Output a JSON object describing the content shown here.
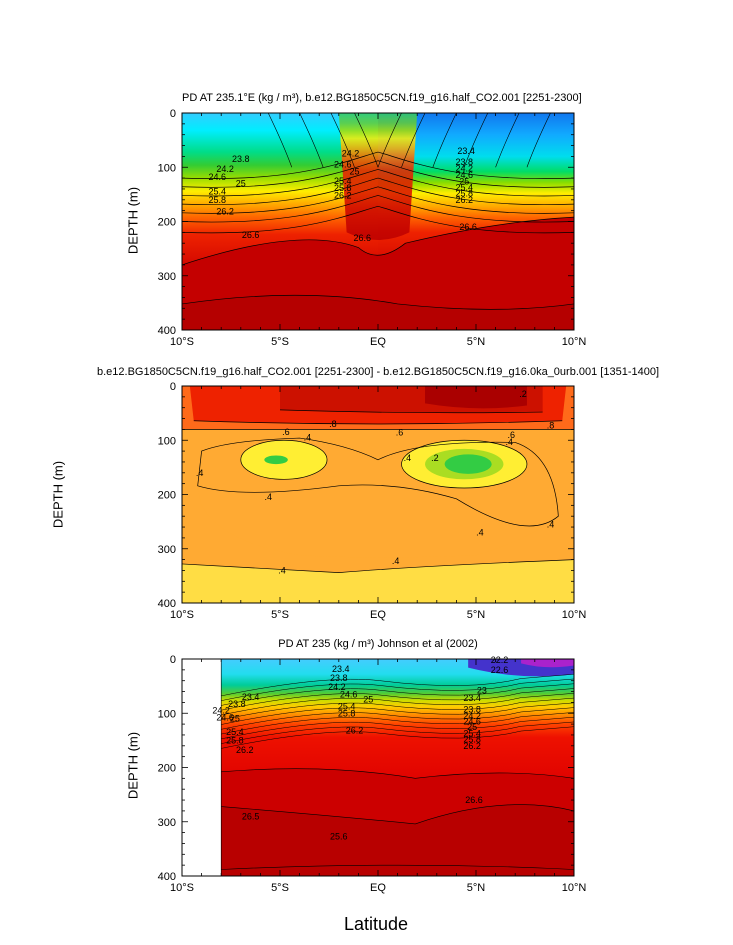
{
  "chart_data": [
    {
      "type": "heatmap",
      "title": "PD AT 235.1°E (kg / m³), b.e12.BG1850C5CN.f19_g16.half_CO2.001 [2251-2300]",
      "xlabel": "",
      "ylabel": "DEPTH (m)",
      "x_ticks": [
        "10°S",
        "5°S",
        "EQ",
        "5°N",
        "10°N"
      ],
      "y_ticks": [
        "0",
        "100",
        "200",
        "300",
        "400"
      ],
      "xlim": [
        -10,
        10
      ],
      "ylim": [
        400,
        0
      ],
      "contour_labels": [
        {
          "text": "23.8",
          "lat": -7.0,
          "depth": 85
        },
        {
          "text": "24.2",
          "lat": -7.8,
          "depth": 103
        },
        {
          "text": "24.6",
          "lat": -8.2,
          "depth": 118
        },
        {
          "text": "25",
          "lat": -7.0,
          "depth": 130
        },
        {
          "text": "25.4",
          "lat": -8.2,
          "depth": 145
        },
        {
          "text": "25.8",
          "lat": -8.2,
          "depth": 160
        },
        {
          "text": "26.2",
          "lat": -7.8,
          "depth": 182
        },
        {
          "text": "26.6",
          "lat": -6.5,
          "depth": 225
        },
        {
          "text": "24.2",
          "lat": -1.4,
          "depth": 75
        },
        {
          "text": "24.6",
          "lat": -1.8,
          "depth": 95
        },
        {
          "text": "25",
          "lat": -1.2,
          "depth": 108
        },
        {
          "text": "25.4",
          "lat": -1.8,
          "depth": 125
        },
        {
          "text": "25.8",
          "lat": -1.8,
          "depth": 138
        },
        {
          "text": "26.2",
          "lat": -1.8,
          "depth": 152
        },
        {
          "text": "26.6",
          "lat": -0.8,
          "depth": 230
        },
        {
          "text": "23.4",
          "lat": 4.5,
          "depth": 70
        },
        {
          "text": "23.8",
          "lat": 4.4,
          "depth": 90
        },
        {
          "text": "24.2",
          "lat": 4.4,
          "depth": 102
        },
        {
          "text": "24.6",
          "lat": 4.4,
          "depth": 114
        },
        {
          "text": "25",
          "lat": 4.4,
          "depth": 126
        },
        {
          "text": "25.4",
          "lat": 4.4,
          "depth": 137
        },
        {
          "text": "25.8",
          "lat": 4.4,
          "depth": 148
        },
        {
          "text": "26.2",
          "lat": 4.4,
          "depth": 160
        },
        {
          "text": "26.6",
          "lat": 4.6,
          "depth": 210
        }
      ]
    },
    {
      "type": "heatmap",
      "title": "b.e12.BG1850C5CN.f19_g16.half_CO2.001 [2251-2300] - b.e12.BG1850C5CN.f19_g16.0ka_0urb.001 [1351-1400]",
      "xlabel": "",
      "ylabel": "DEPTH (m)",
      "x_ticks": [
        "10°S",
        "5°S",
        "EQ",
        "5°N",
        "10°N"
      ],
      "y_ticks": [
        "0",
        "100",
        "200",
        "300",
        "400"
      ],
      "xlim": [
        -10,
        10
      ],
      "ylim": [
        400,
        0
      ],
      "contour_labels": [
        {
          "text": ".8",
          "lat": -2.3,
          "depth": 70
        },
        {
          "text": ".8",
          "lat": 8.8,
          "depth": 73
        },
        {
          "text": ".6",
          "lat": -4.7,
          "depth": 85
        },
        {
          "text": ".4",
          "lat": -3.6,
          "depth": 95
        },
        {
          "text": ".6",
          "lat": 1.1,
          "depth": 86
        },
        {
          "text": ".6",
          "lat": 6.8,
          "depth": 90
        },
        {
          "text": ".4",
          "lat": 6.7,
          "depth": 103
        },
        {
          "text": ".4",
          "lat": -9.1,
          "depth": 160
        },
        {
          "text": ".4",
          "lat": 1.5,
          "depth": 133
        },
        {
          "text": ".2",
          "lat": 2.9,
          "depth": 133
        },
        {
          "text": ".4",
          "lat": -5.6,
          "depth": 205
        },
        {
          "text": ".4",
          "lat": 5.2,
          "depth": 270
        },
        {
          "text": ".4",
          "lat": 8.8,
          "depth": 255
        },
        {
          "text": ".4",
          "lat": -4.9,
          "depth": 340
        },
        {
          "text": ".4",
          "lat": 0.9,
          "depth": 323
        },
        {
          "text": ".2",
          "lat": 7.4,
          "depth": 15
        }
      ]
    },
    {
      "type": "heatmap",
      "title": "PD AT 235 (kg / m³) Johnson et al (2002)",
      "xlabel": "Latitude",
      "ylabel": "DEPTH (m)",
      "x_ticks": [
        "10°S",
        "5°S",
        "EQ",
        "5°N",
        "10°N"
      ],
      "y_ticks": [
        "0",
        "100",
        "200",
        "300",
        "400"
      ],
      "xlim": [
        -10,
        10
      ],
      "ylim": [
        400,
        0
      ],
      "data_xlim": [
        -8,
        10
      ],
      "contour_labels": [
        {
          "text": "23.4",
          "lat": -6.5,
          "depth": 70
        },
        {
          "text": "23.8",
          "lat": -7.2,
          "depth": 83
        },
        {
          "text": "24.2",
          "lat": -8.0,
          "depth": 95
        },
        {
          "text": "24.6",
          "lat": -7.8,
          "depth": 108
        },
        {
          "text": "25",
          "lat": -7.3,
          "depth": 110
        },
        {
          "text": "25.4",
          "lat": -7.3,
          "depth": 135
        },
        {
          "text": "25.8",
          "lat": -7.3,
          "depth": 150
        },
        {
          "text": "26.2",
          "lat": -6.8,
          "depth": 168
        },
        {
          "text": "26.5",
          "lat": -6.5,
          "depth": 290
        },
        {
          "text": "23.4",
          "lat": -1.9,
          "depth": 18
        },
        {
          "text": "23.8",
          "lat": -2.0,
          "depth": 35
        },
        {
          "text": "24.2",
          "lat": -2.1,
          "depth": 52
        },
        {
          "text": "24.6",
          "lat": -1.5,
          "depth": 65
        },
        {
          "text": "25",
          "lat": -0.5,
          "depth": 75
        },
        {
          "text": "25.4",
          "lat": -1.6,
          "depth": 88
        },
        {
          "text": "25.8",
          "lat": -1.6,
          "depth": 100
        },
        {
          "text": "26.2",
          "lat": -1.2,
          "depth": 132
        },
        {
          "text": "25.6",
          "lat": -2.0,
          "depth": 327
        },
        {
          "text": "22.6",
          "lat": 6.2,
          "depth": 20
        },
        {
          "text": "23",
          "lat": 5.3,
          "depth": 58
        },
        {
          "text": "23.4",
          "lat": 4.8,
          "depth": 72
        },
        {
          "text": "23.8",
          "lat": 4.8,
          "depth": 93
        },
        {
          "text": "24.2",
          "lat": 4.8,
          "depth": 105
        },
        {
          "text": "24.6",
          "lat": 4.8,
          "depth": 115
        },
        {
          "text": "25",
          "lat": 4.8,
          "depth": 125
        },
        {
          "text": "25.4",
          "lat": 4.8,
          "depth": 137
        },
        {
          "text": "25.8",
          "lat": 4.8,
          "depth": 148
        },
        {
          "text": "26.2",
          "lat": 4.8,
          "depth": 160
        },
        {
          "text": "26.6",
          "lat": 4.9,
          "depth": 260
        },
        {
          "text": "22.2",
          "lat": 6.2,
          "depth": 2
        }
      ]
    }
  ]
}
